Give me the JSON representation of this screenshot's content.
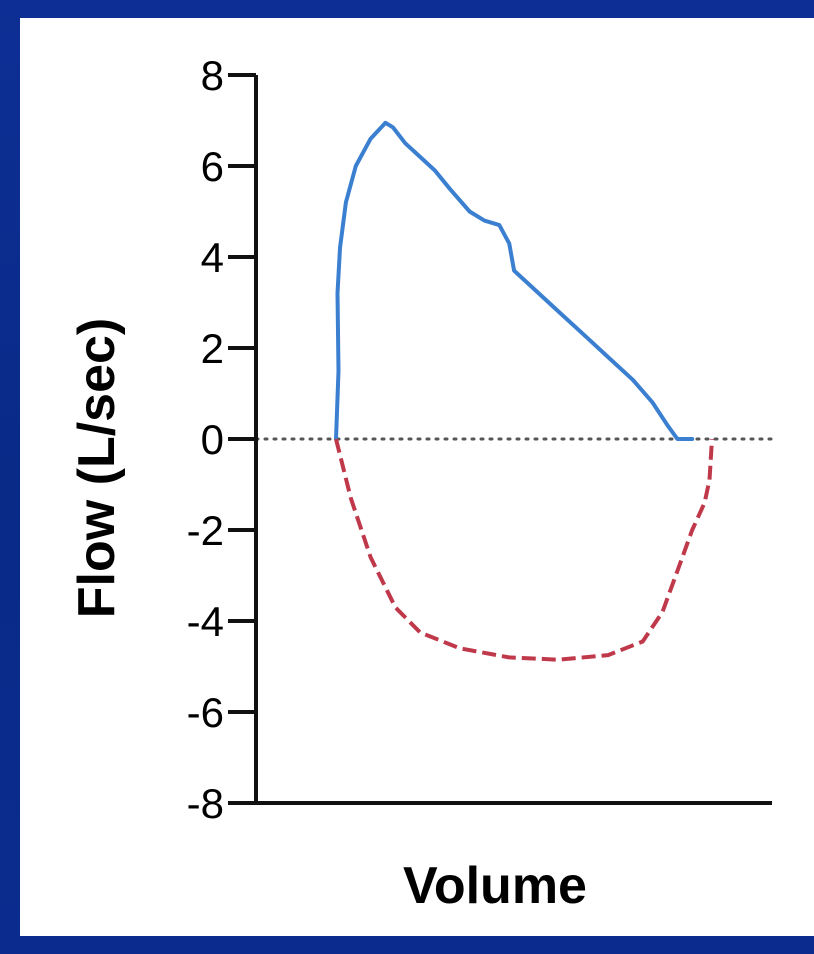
{
  "colors": {
    "background": "#0b2a8a",
    "panel": "#ffffff",
    "expiratory": "#3b7fd0",
    "inspiratory": "#c0394b",
    "axis": "#111111"
  },
  "chart_data": {
    "type": "line",
    "title": "",
    "xlabel": "Volume",
    "ylabel": "Flow (L/sec)",
    "ylim": [
      -8,
      8
    ],
    "yticks": [
      "8",
      "6",
      "4",
      "2",
      "0",
      "-2",
      "-4",
      "-6",
      "-8"
    ],
    "xlim": [
      0,
      100
    ],
    "reference_line": {
      "y": 0,
      "style": "dotted"
    },
    "series": [
      {
        "style": "solid",
        "color": "#3b7fd0",
        "points": [
          [
            0,
            0
          ],
          [
            0.5,
            1.5
          ],
          [
            0.3,
            3.2
          ],
          [
            0.8,
            4.2
          ],
          [
            2,
            5.2
          ],
          [
            4,
            6.0
          ],
          [
            7,
            6.6
          ],
          [
            10,
            6.95
          ],
          [
            11.5,
            6.85
          ],
          [
            14,
            6.5
          ],
          [
            16,
            6.3
          ],
          [
            20,
            5.9
          ],
          [
            23,
            5.5
          ],
          [
            27,
            5.0
          ],
          [
            30,
            4.8
          ],
          [
            33,
            4.7
          ],
          [
            35,
            4.3
          ],
          [
            36,
            3.7
          ],
          [
            40,
            3.3
          ],
          [
            45,
            2.8
          ],
          [
            50,
            2.3
          ],
          [
            55,
            1.8
          ],
          [
            60,
            1.3
          ],
          [
            64,
            0.8
          ],
          [
            67,
            0.3
          ],
          [
            69,
            0.0
          ],
          [
            72,
            0.0
          ]
        ]
      },
      {
        "style": "dashed",
        "color": "#c0394b",
        "points": [
          [
            0,
            0
          ],
          [
            3,
            -1.3
          ],
          [
            7,
            -2.6
          ],
          [
            12,
            -3.7
          ],
          [
            17,
            -4.25
          ],
          [
            25,
            -4.6
          ],
          [
            35,
            -4.8
          ],
          [
            45,
            -4.85
          ],
          [
            55,
            -4.75
          ],
          [
            62,
            -4.45
          ],
          [
            66,
            -3.8
          ],
          [
            69,
            -2.9
          ],
          [
            72,
            -2.0
          ],
          [
            74.5,
            -1.4
          ],
          [
            75.5,
            -0.9
          ],
          [
            76,
            0
          ]
        ]
      }
    ]
  }
}
